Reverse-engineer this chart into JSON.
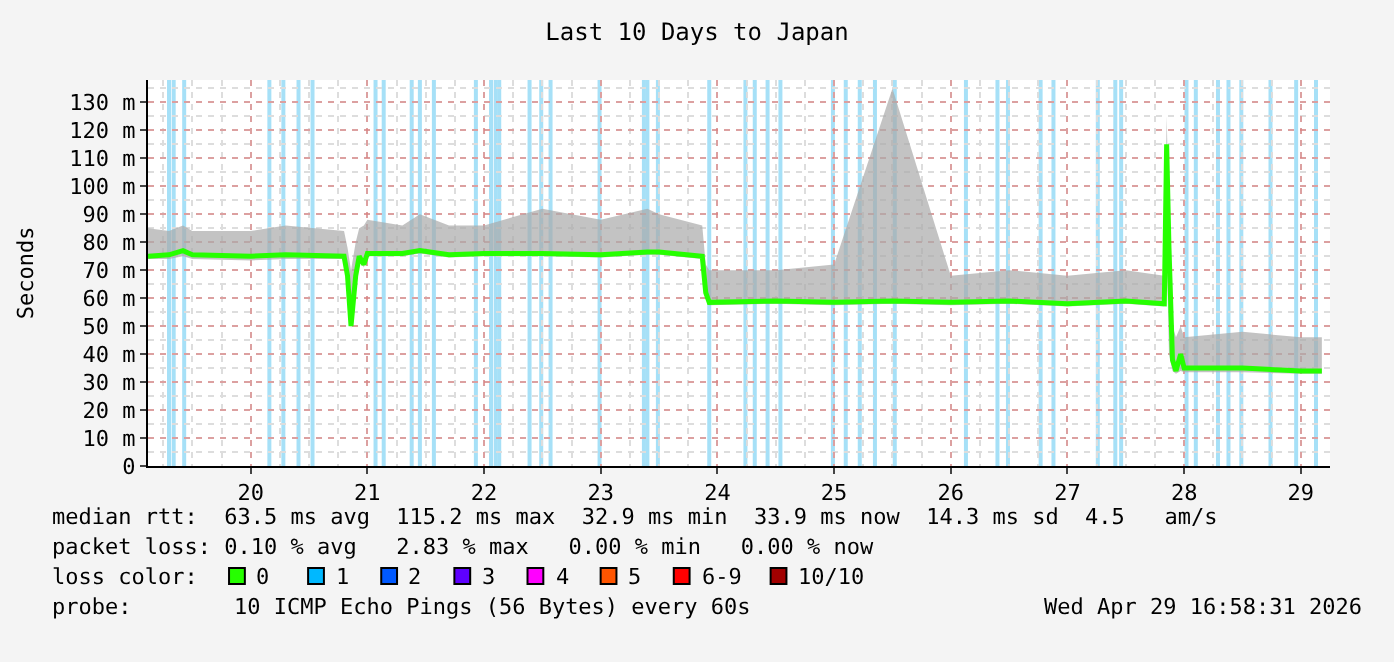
{
  "chart_data": {
    "type": "line",
    "title": "Last 10 Days to Japan",
    "ylabel": "Seconds",
    "x": [
      19.12,
      19.3,
      19.42,
      19.5,
      20.0,
      20.3,
      20.8,
      20.83,
      20.86,
      20.9,
      20.93,
      20.97,
      21.0,
      21.3,
      21.45,
      21.7,
      22.0,
      22.5,
      23.0,
      23.4,
      23.5,
      23.87,
      23.9,
      23.93,
      24.5,
      25.0,
      25.5,
      26.0,
      26.5,
      27.0,
      27.5,
      27.83,
      27.85,
      27.87,
      27.9,
      27.93,
      27.97,
      28.0,
      28.5,
      29.0,
      29.18
    ],
    "series": [
      {
        "color": "#26ff00",
        "values": [
          75,
          75.5,
          77,
          75.5,
          75,
          75.5,
          75,
          68,
          50,
          68,
          75,
          72,
          76,
          76,
          77,
          75.5,
          76,
          76,
          75.5,
          76.5,
          76.5,
          75,
          62,
          58.5,
          59,
          58.5,
          59,
          58.5,
          59,
          58,
          59,
          58,
          115,
          78,
          38,
          34,
          40,
          35,
          35,
          34,
          34
        ],
        "lower": [
          74,
          74,
          75,
          74,
          73.5,
          74,
          74,
          67,
          49,
          67,
          74,
          71,
          75,
          75,
          76,
          74.5,
          75,
          75,
          74.5,
          75.5,
          75.5,
          74,
          60,
          57.5,
          58,
          57.5,
          58,
          57.5,
          58,
          57,
          58,
          57,
          78,
          40,
          34,
          33,
          34,
          33.5,
          33.5,
          33,
          33
        ],
        "upper": [
          85,
          84,
          86,
          84,
          84,
          86,
          84,
          78,
          70,
          80,
          85,
          86,
          88,
          86,
          90,
          86,
          86,
          92,
          88,
          92,
          90,
          86,
          72,
          70,
          70,
          72,
          135,
          68,
          70,
          68,
          70,
          68,
          125,
          90,
          50,
          46,
          50,
          46,
          48,
          46,
          46
        ]
      }
    ],
    "xlim": [
      19.12,
      29.25
    ],
    "xticks": [
      20,
      21,
      22,
      23,
      24,
      25,
      26,
      27,
      28,
      29
    ],
    "ylim": [
      0,
      138
    ],
    "yticks": [
      0,
      {
        "value": 10,
        "label": "10 m"
      },
      {
        "value": 20,
        "label": "20 m"
      },
      {
        "value": 30,
        "label": "30 m"
      },
      {
        "value": 40,
        "label": "40 m"
      },
      {
        "value": 50,
        "label": "50 m"
      },
      {
        "value": 60,
        "label": "60 m"
      },
      {
        "value": 70,
        "label": "70 m"
      },
      {
        "value": 80,
        "label": "80 m"
      },
      {
        "value": 90,
        "label": "90 m"
      },
      {
        "value": 100,
        "label": "100 m"
      },
      {
        "value": 110,
        "label": "110 m"
      },
      {
        "value": 120,
        "label": "120 m"
      },
      {
        "value": 130,
        "label": "130 m"
      }
    ],
    "grid": true,
    "marker": "none",
    "line_style": "solid",
    "ref_lines": [
      {
        "axis": "x",
        "value": 19.3,
        "color": "#a6e0f7"
      },
      {
        "axis": "x",
        "value": 19.34,
        "color": "#a6e0f7"
      },
      {
        "axis": "x",
        "value": 19.43,
        "color": "#a6e0f7"
      },
      {
        "axis": "x",
        "value": 20.16,
        "color": "#a6e0f7"
      },
      {
        "axis": "x",
        "value": 20.28,
        "color": "#a6e0f7"
      },
      {
        "axis": "x",
        "value": 20.41,
        "color": "#a6e0f7"
      },
      {
        "axis": "x",
        "value": 20.53,
        "color": "#a6e0f7"
      },
      {
        "axis": "x",
        "value": 21.07,
        "color": "#a6e0f7"
      },
      {
        "axis": "x",
        "value": 21.14,
        "color": "#a6e0f7"
      },
      {
        "axis": "x",
        "value": 21.38,
        "color": "#a6e0f7"
      },
      {
        "axis": "x",
        "value": 21.45,
        "color": "#a6e0f7"
      },
      {
        "axis": "x",
        "value": 21.57,
        "color": "#a6e0f7"
      },
      {
        "axis": "x",
        "value": 21.93,
        "color": "#a6e0f7"
      },
      {
        "axis": "x",
        "value": 22.06,
        "color": "#a6e0f7"
      },
      {
        "axis": "x",
        "value": 22.1,
        "color": "#a6e0f7"
      },
      {
        "axis": "x",
        "value": 22.13,
        "color": "#a6e0f7"
      },
      {
        "axis": "x",
        "value": 22.39,
        "color": "#a6e0f7"
      },
      {
        "axis": "x",
        "value": 22.49,
        "color": "#a6e0f7"
      },
      {
        "axis": "x",
        "value": 22.57,
        "color": "#a6e0f7"
      },
      {
        "axis": "x",
        "value": 22.99,
        "color": "#a6e0f7"
      },
      {
        "axis": "x",
        "value": 23.37,
        "color": "#a6e0f7"
      },
      {
        "axis": "x",
        "value": 23.4,
        "color": "#a6e0f7"
      },
      {
        "axis": "x",
        "value": 23.49,
        "color": "#a6e0f7"
      },
      {
        "axis": "x",
        "value": 23.93,
        "color": "#a6e0f7"
      },
      {
        "axis": "x",
        "value": 24.24,
        "color": "#a6e0f7"
      },
      {
        "axis": "x",
        "value": 24.32,
        "color": "#a6e0f7"
      },
      {
        "axis": "x",
        "value": 24.43,
        "color": "#a6e0f7"
      },
      {
        "axis": "x",
        "value": 24.54,
        "color": "#a6e0f7"
      },
      {
        "axis": "x",
        "value": 24.99,
        "color": "#a6e0f7"
      },
      {
        "axis": "x",
        "value": 25.1,
        "color": "#a6e0f7"
      },
      {
        "axis": "x",
        "value": 25.22,
        "color": "#a6e0f7"
      },
      {
        "axis": "x",
        "value": 25.35,
        "color": "#a6e0f7"
      },
      {
        "axis": "x",
        "value": 25.52,
        "color": "#a6e0f7"
      },
      {
        "axis": "x",
        "value": 26.13,
        "color": "#a6e0f7"
      },
      {
        "axis": "x",
        "value": 26.4,
        "color": "#a6e0f7"
      },
      {
        "axis": "x",
        "value": 26.49,
        "color": "#a6e0f7"
      },
      {
        "axis": "x",
        "value": 26.77,
        "color": "#a6e0f7"
      },
      {
        "axis": "x",
        "value": 26.88,
        "color": "#a6e0f7"
      },
      {
        "axis": "x",
        "value": 27.26,
        "color": "#a6e0f7"
      },
      {
        "axis": "x",
        "value": 27.41,
        "color": "#a6e0f7"
      },
      {
        "axis": "x",
        "value": 27.46,
        "color": "#a6e0f7"
      },
      {
        "axis": "x",
        "value": 28.02,
        "color": "#a6e0f7"
      },
      {
        "axis": "x",
        "value": 28.1,
        "color": "#a6e0f7"
      },
      {
        "axis": "x",
        "value": 28.29,
        "color": "#a6e0f7"
      },
      {
        "axis": "x",
        "value": 28.38,
        "color": "#a6e0f7"
      },
      {
        "axis": "x",
        "value": 28.49,
        "color": "#a6e0f7"
      },
      {
        "axis": "x",
        "value": 28.74,
        "color": "#a6e0f7"
      },
      {
        "axis": "x",
        "value": 28.96,
        "color": "#a6e0f7"
      },
      {
        "axis": "x",
        "value": 29.13,
        "color": "#a6e0f7"
      }
    ],
    "annotations": [
      "median rtt:  63.5 ms avg  115.2 ms max  32.9 ms min  33.9 ms now  14.3 ms sd  4.5   am/s",
      "packet loss: 0.10 % avg   2.83 % max   0.00 % min   0.00 % now",
      "loss color:",
      "0",
      "1",
      "2",
      "3",
      "4",
      "5",
      "6-9",
      "10/10",
      "probe:",
      "10 ICMP Echo Pings (56 Bytes) every 60s",
      "Wed Apr 29 16:58:31 2026"
    ]
  }
}
